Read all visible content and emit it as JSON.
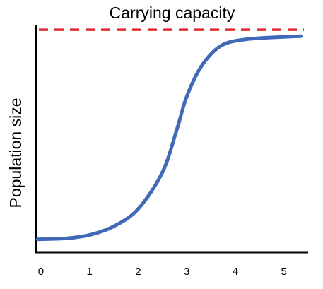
{
  "chart_data": {
    "type": "line",
    "title": "",
    "xlabel": "",
    "ylabel": "Population size",
    "x_ticks": [
      0,
      1,
      2,
      3,
      4,
      5
    ],
    "xlim": [
      -0.1,
      5.5
    ],
    "ylim": [
      0,
      1.05
    ],
    "grid": false,
    "series": [
      {
        "name": "",
        "color": "#4169b8",
        "points": [
          [
            -0.07,
            0.06
          ],
          [
            0.5,
            0.064
          ],
          [
            1.0,
            0.08
          ],
          [
            1.5,
            0.12
          ],
          [
            2.0,
            0.2
          ],
          [
            2.5,
            0.37
          ],
          [
            2.8,
            0.57
          ],
          [
            3.0,
            0.72
          ],
          [
            3.3,
            0.86
          ],
          [
            3.7,
            0.955
          ],
          [
            4.2,
            0.985
          ],
          [
            5.0,
            0.997
          ],
          [
            5.35,
            1.0
          ]
        ]
      }
    ],
    "reference_line": {
      "label": "Carrying capacity",
      "y": 1.03,
      "color": "#e02b35",
      "style": "dashed"
    }
  }
}
